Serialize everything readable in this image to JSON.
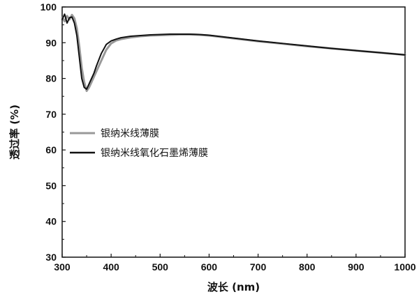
{
  "chart_data": {
    "type": "line",
    "xlabel": "波长 (nm)",
    "ylabel": "透过率 (%)",
    "xlim": [
      300,
      1000
    ],
    "ylim": [
      30,
      100
    ],
    "xticks": [
      300,
      400,
      500,
      600,
      700,
      800,
      900,
      1000
    ],
    "yticks": [
      30,
      40,
      50,
      60,
      70,
      80,
      90,
      100
    ],
    "tick_labels": {
      "x": [
        "300",
        "400",
        "500",
        "600",
        "700",
        "800",
        "900",
        "1000"
      ],
      "y": [
        "30",
        "40",
        "50",
        "60",
        "70",
        "80",
        "90",
        "100"
      ]
    },
    "grid": false,
    "legend_position": "center-left",
    "series": [
      {
        "name": "银纳米线薄膜",
        "color": "#999999",
        "x": [
          300,
          305,
          310,
          315,
          320,
          325,
          330,
          335,
          340,
          345,
          350,
          355,
          360,
          365,
          370,
          380,
          390,
          400,
          410,
          420,
          440,
          460,
          480,
          500,
          520,
          540,
          560,
          580,
          600,
          650,
          700,
          750,
          800,
          850,
          900,
          950,
          1000
        ],
        "y": [
          97.0,
          96.0,
          97.5,
          96.5,
          97.8,
          96.8,
          94.0,
          89.0,
          83.0,
          79.0,
          76.5,
          77.5,
          79.0,
          80.5,
          82.0,
          85.0,
          88.0,
          89.8,
          90.6,
          91.0,
          91.5,
          91.8,
          92.0,
          92.1,
          92.2,
          92.3,
          92.3,
          92.2,
          92.0,
          91.2,
          90.4,
          89.7,
          89.0,
          88.4,
          87.8,
          87.2,
          86.6
        ]
      },
      {
        "name": "银纳米线氧化石墨烯薄膜",
        "color": "#111111",
        "x": [
          300,
          305,
          310,
          315,
          320,
          325,
          330,
          335,
          340,
          345,
          350,
          355,
          360,
          365,
          370,
          380,
          390,
          400,
          410,
          420,
          440,
          460,
          480,
          500,
          520,
          540,
          560,
          580,
          600,
          650,
          700,
          750,
          800,
          850,
          900,
          950,
          1000
        ],
        "y": [
          96.5,
          98.0,
          95.5,
          97.0,
          97.2,
          95.5,
          92.0,
          86.0,
          80.0,
          77.5,
          77.0,
          78.5,
          80.0,
          81.5,
          83.5,
          87.0,
          89.5,
          90.5,
          91.0,
          91.4,
          91.8,
          92.0,
          92.2,
          92.3,
          92.4,
          92.4,
          92.4,
          92.3,
          92.1,
          91.3,
          90.5,
          89.8,
          89.1,
          88.4,
          87.8,
          87.2,
          86.6
        ]
      }
    ]
  }
}
